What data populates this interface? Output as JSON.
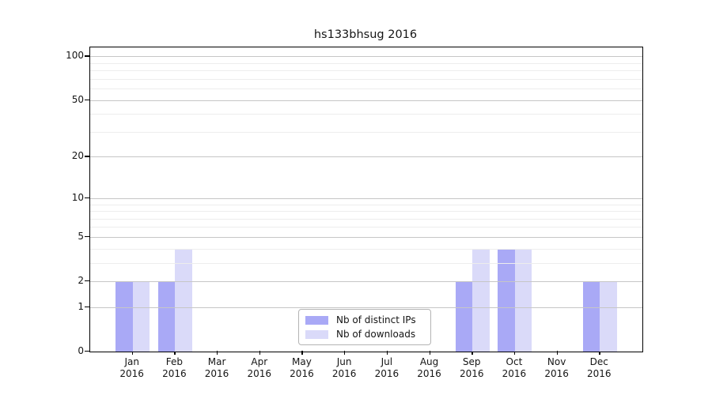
{
  "title": "hs133bhsug 2016",
  "chart_data": {
    "type": "bar",
    "title": "hs133bhsug 2016",
    "categories": [
      "Jan\n2016",
      "Feb\n2016",
      "Mar\n2016",
      "Apr\n2016",
      "May\n2016",
      "Jun\n2016",
      "Jul\n2016",
      "Aug\n2016",
      "Sep\n2016",
      "Oct\n2016",
      "Nov\n2016",
      "Dec\n2016"
    ],
    "series": [
      {
        "name": "Nb of distinct IPs",
        "color": "#a9a9f6",
        "values": [
          2,
          2,
          0,
          0,
          0,
          0,
          0,
          0,
          2,
          4,
          0,
          2
        ]
      },
      {
        "name": "Nb of downloads",
        "color": "#dadaf9",
        "values": [
          2,
          4,
          0,
          0,
          0,
          0,
          0,
          0,
          4,
          4,
          0,
          2
        ]
      }
    ],
    "xlabel": "",
    "ylabel": "",
    "y_scale": "log10(1+x)",
    "ylim": [
      0,
      115
    ],
    "y_major_ticks": [
      0,
      1,
      2,
      5,
      10,
      20,
      50,
      100
    ],
    "y_minor_ticks": [
      3,
      4,
      6,
      7,
      8,
      9,
      30,
      40,
      60,
      70,
      80,
      90
    ],
    "grid": true,
    "legend_position": "bottom-center",
    "colors": {
      "grid_major": "#c6c6c6",
      "grid_minor": "#ededed",
      "axis": "#000000",
      "text": "#151515"
    }
  }
}
